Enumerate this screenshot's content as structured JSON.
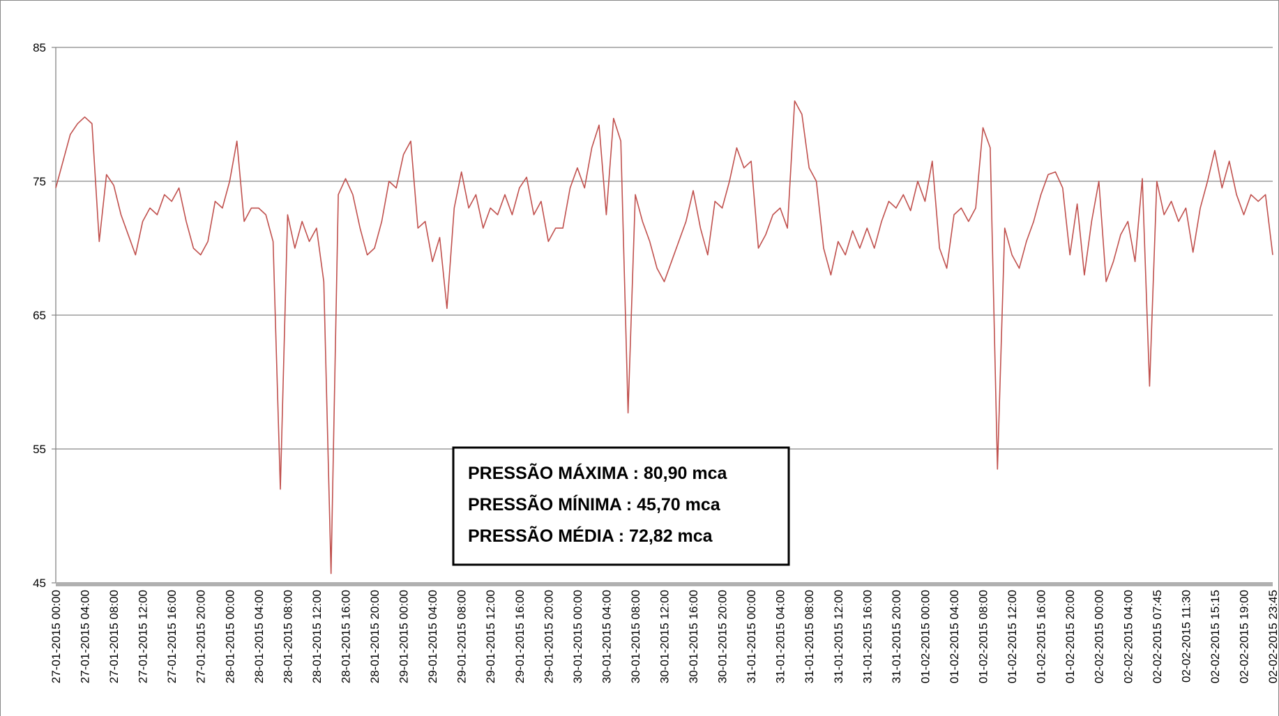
{
  "chart_data": {
    "type": "line",
    "categories": [
      "27-01-2015 00:00",
      null,
      null,
      null,
      "27-01-2015 04:00",
      null,
      null,
      null,
      "27-01-2015 08:00",
      null,
      null,
      null,
      "27-01-2015 12:00",
      null,
      null,
      null,
      "27-01-2015 16:00",
      null,
      null,
      null,
      "27-01-2015 20:00",
      null,
      null,
      null,
      "28-01-2015 00:00",
      null,
      null,
      null,
      "28-01-2015 04:00",
      null,
      null,
      null,
      "28-01-2015 08:00",
      null,
      null,
      null,
      "28-01-2015 12:00",
      null,
      null,
      null,
      "28-01-2015 16:00",
      null,
      null,
      null,
      "28-01-2015 20:00",
      null,
      null,
      null,
      "29-01-2015 00:00",
      null,
      null,
      null,
      "29-01-2015 04:00",
      null,
      null,
      null,
      "29-01-2015 08:00",
      null,
      null,
      null,
      "29-01-2015 12:00",
      null,
      null,
      null,
      "29-01-2015 16:00",
      null,
      null,
      null,
      "29-01-2015 20:00",
      null,
      null,
      null,
      "30-01-2015 00:00",
      null,
      null,
      null,
      "30-01-2015 04:00",
      null,
      null,
      null,
      "30-01-2015 08:00",
      null,
      null,
      null,
      "30-01-2015 12:00",
      null,
      null,
      null,
      "30-01-2015 16:00",
      null,
      null,
      null,
      "30-01-2015 20:00",
      null,
      null,
      null,
      "31-01-2015 00:00",
      null,
      null,
      null,
      "31-01-2015 04:00",
      null,
      null,
      null,
      "31-01-2015 08:00",
      null,
      null,
      null,
      "31-01-2015 12:00",
      null,
      null,
      null,
      "31-01-2015 16:00",
      null,
      null,
      null,
      "31-01-2015 20:00",
      null,
      null,
      null,
      "01-02-2015 00:00",
      null,
      null,
      null,
      "01-02-2015 04:00",
      null,
      null,
      null,
      "01-02-2015 08:00",
      null,
      null,
      null,
      "01-02-2015 12:00",
      null,
      null,
      null,
      "01-02-2015 16:00",
      null,
      null,
      null,
      "01-02-2015 20:00",
      null,
      null,
      null,
      "02-02-2015 00:00",
      null,
      null,
      null,
      "02-02-2015 04:00",
      null,
      null,
      null,
      "02-02-2015 07:45",
      null,
      null,
      null,
      "02-02-2015 11:30",
      null,
      null,
      null,
      "02-02-2015 15:15",
      null,
      null,
      null,
      "02-02-2015 19:00",
      null,
      null,
      null,
      "02-02-2015 23:45"
    ],
    "values": [
      74.5,
      76.5,
      78.5,
      79.3,
      79.8,
      79.3,
      70.5,
      75.5,
      74.7,
      72.5,
      71,
      69.5,
      72,
      73,
      72.5,
      74,
      73.5,
      74.5,
      72,
      70,
      69.5,
      70.5,
      73.5,
      73,
      75,
      78,
      72,
      73,
      73,
      72.5,
      70.5,
      52,
      72.5,
      70,
      72,
      70.5,
      71.5,
      67.5,
      45.7,
      74,
      75.2,
      74,
      71.5,
      69.5,
      70,
      72,
      75,
      74.5,
      77,
      78,
      71.5,
      72,
      69,
      70.8,
      65.5,
      73,
      75.7,
      73,
      74,
      71.5,
      73,
      72.5,
      74,
      72.5,
      74.5,
      75.3,
      72.5,
      73.5,
      70.5,
      71.5,
      71.5,
      74.5,
      76,
      74.5,
      77.5,
      79.2,
      72.5,
      79.7,
      78,
      57.7,
      74,
      72,
      70.5,
      68.5,
      67.5,
      69,
      70.5,
      72,
      74.3,
      71.5,
      69.5,
      73.5,
      73,
      75,
      77.5,
      76,
      76.5,
      70,
      71,
      72.5,
      73,
      71.5,
      81,
      80,
      76,
      75,
      70,
      68,
      70.5,
      69.5,
      71.3,
      70,
      71.5,
      70,
      72,
      73.5,
      73,
      74,
      72.8,
      75,
      73.5,
      76.5,
      70,
      68.5,
      72.5,
      73,
      72,
      73,
      79,
      77.5,
      53.5,
      71.5,
      69.5,
      68.5,
      70.5,
      72,
      74,
      75.5,
      75.7,
      74.5,
      69.5,
      73.3,
      68,
      72,
      75,
      67.5,
      69,
      71,
      72,
      69,
      75.2,
      59.7,
      75,
      72.5,
      73.5,
      72,
      73,
      69.7,
      73,
      75,
      77.3,
      74.5,
      76.5,
      74,
      72.5,
      74,
      73.5,
      74,
      69.5
    ],
    "color": "#c0504d",
    "ylim": [
      45,
      85
    ],
    "yticks": [
      45,
      55,
      65,
      75,
      85
    ],
    "grid": true,
    "annotations": [
      "PRESSÃO MÁXIMA : 80,90 mca",
      "PRESSÃO MÍNIMA : 45,70 mca",
      "PRESSÃO MÉDIA : 72,82 mca"
    ]
  }
}
